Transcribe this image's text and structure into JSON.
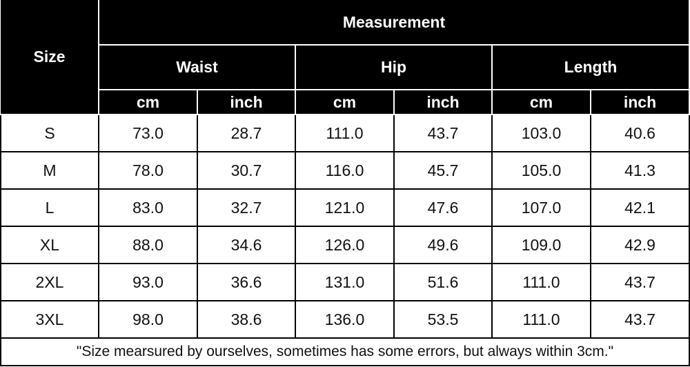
{
  "header": {
    "size": "Size",
    "measurement": "Measurement",
    "groups": [
      "Waist",
      "Hip",
      "Length"
    ],
    "units": [
      "cm",
      "inch",
      "cm",
      "inch",
      "cm",
      "inch"
    ]
  },
  "table": {
    "rows": [
      [
        "S",
        "73.0",
        "28.7",
        "111.0",
        "43.7",
        "103.0",
        "40.6"
      ],
      [
        "M",
        "78.0",
        "30.7",
        "116.0",
        "45.7",
        "105.0",
        "41.3"
      ],
      [
        "L",
        "83.0",
        "32.7",
        "121.0",
        "47.6",
        "107.0",
        "42.1"
      ],
      [
        "XL",
        "88.0",
        "34.6",
        "126.0",
        "49.6",
        "109.0",
        "42.9"
      ],
      [
        "2XL",
        "93.0",
        "36.6",
        "131.0",
        "51.6",
        "111.0",
        "43.7"
      ],
      [
        "3XL",
        "98.0",
        "38.6",
        "136.0",
        "53.5",
        "111.0",
        "43.7"
      ]
    ]
  },
  "footnote": "\"Size mearsured by ourselves, sometimes has some errors, but always within 3cm.\""
}
